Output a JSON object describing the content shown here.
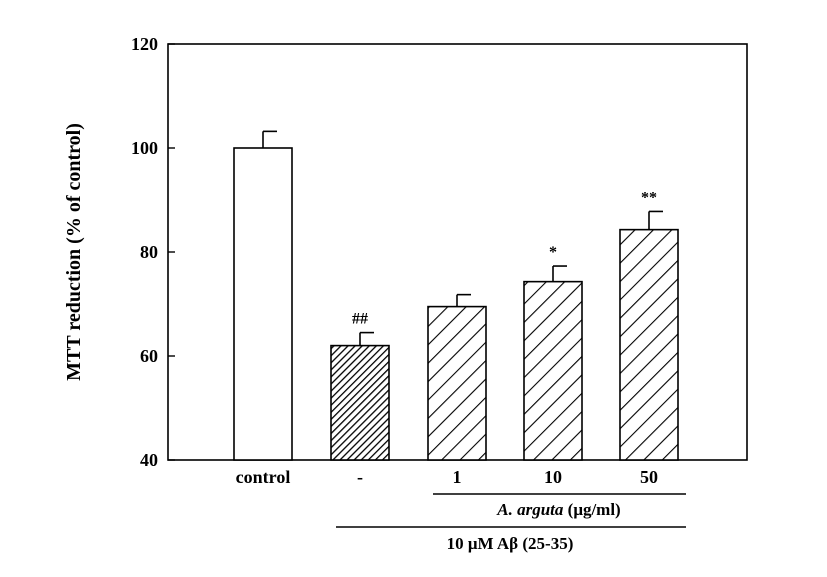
{
  "chart_data": {
    "type": "bar",
    "ylabel": "MTT reduction (% of control)",
    "ylim": [
      40,
      120
    ],
    "yticks": [
      40,
      60,
      80,
      100,
      120
    ],
    "categories": [
      "control",
      "-",
      "1",
      "10",
      "50"
    ],
    "values": [
      100,
      62,
      69.5,
      74.3,
      84.3
    ],
    "errors": [
      3.2,
      2.5,
      2.3,
      3.0,
      3.5
    ],
    "annotations": [
      "",
      "##",
      "",
      "*",
      "**"
    ],
    "bar_styles": [
      "white",
      "dense-hatch",
      "hatch",
      "hatch",
      "hatch"
    ],
    "grid": false,
    "groups": [
      {
        "label_italic": "A. arguta",
        "label_rest": " (μg/ml)",
        "span": [
          "1",
          "50"
        ]
      },
      {
        "label": "10 μM Aβ (25-35)",
        "span": [
          "-",
          "50"
        ]
      }
    ]
  }
}
